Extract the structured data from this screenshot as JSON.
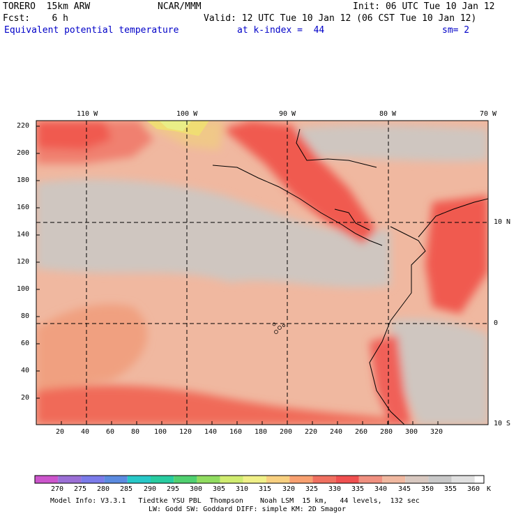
{
  "header": {
    "model": "TORERO  15km ARW",
    "org": "NCAR/MMM",
    "init": "Init: 06 UTC Tue 10 Jan 12",
    "fcst": "Fcst:    6 h",
    "valid": "Valid: 12 UTC Tue 10 Jan 12 (06 CST Tue 10 Jan 12)",
    "field": "Equivalent potential temperature",
    "level": "at k-index =  44",
    "smooth": "sm= 2"
  },
  "axes": {
    "x_ticks": [
      "20",
      "40",
      "60",
      "80",
      "100",
      "120",
      "140",
      "160",
      "180",
      "200",
      "220",
      "240",
      "260",
      "280",
      "300",
      "320"
    ],
    "y_ticks": [
      "20",
      "40",
      "60",
      "80",
      "100",
      "120",
      "140",
      "160",
      "180",
      "200",
      "220"
    ],
    "lon_labels": [
      "110 W",
      "100 W",
      "90 W",
      "80 W",
      "70 W"
    ],
    "lat_labels": [
      "10 N",
      "0",
      "10 S"
    ]
  },
  "colorbar": {
    "labels": [
      "270",
      "275",
      "280",
      "285",
      "290",
      "295",
      "300",
      "305",
      "310",
      "315",
      "320",
      "325",
      "330",
      "335",
      "340",
      "345",
      "350",
      "355",
      "360"
    ],
    "unit": "K",
    "colors": [
      "#cc55cc",
      "#9b6fd6",
      "#7b7bea",
      "#5b8be0",
      "#28c8c8",
      "#28cca0",
      "#50d070",
      "#90dc60",
      "#d0ec70",
      "#f0f088",
      "#f8d080",
      "#f8a070",
      "#f07060",
      "#f05050",
      "#f09080",
      "#f0b8a0",
      "#d8c8c0",
      "#c8c8c8",
      "#e0e0e0",
      "#ffffff"
    ]
  },
  "footer": {
    "line1": "Model Info: V3.3.1   Tiedtke YSU PBL  Thompson    Noah LSM  15 km,   44 levels,  132 sec",
    "line2": "LW: Godd SW: Goddard DIFF: simple KM: 2D Smagor"
  }
}
